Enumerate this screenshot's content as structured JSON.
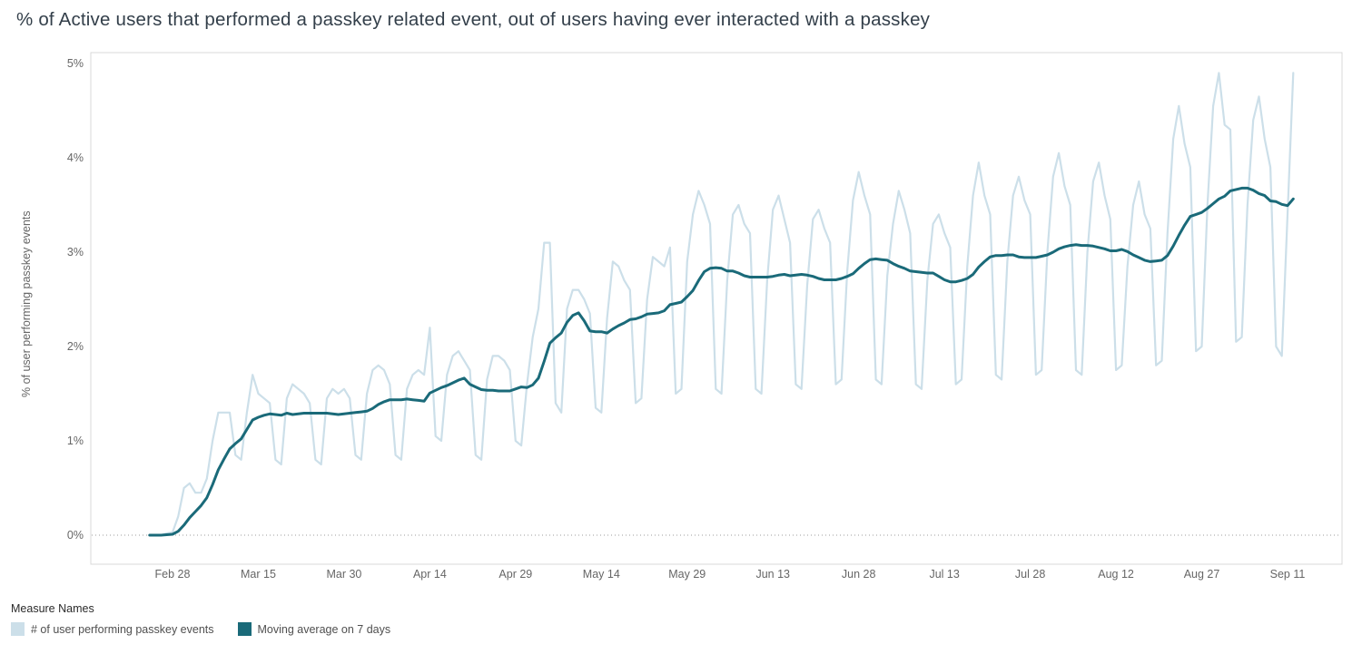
{
  "chart_data": {
    "type": "line",
    "title": "% of Active users that performed a passkey related event, out of users having ever interacted with a passkey",
    "xlabel": "",
    "ylabel": "% of user performing passkey events",
    "ylim": [
      0,
      5
    ],
    "grid": "dotted baseline at 0% only",
    "legend_title": "Measure Names",
    "legend_position": "bottom-left",
    "y_ticks": [
      {
        "label": "0%",
        "value": 0
      },
      {
        "label": "1%",
        "value": 1
      },
      {
        "label": "2%",
        "value": 2
      },
      {
        "label": "3%",
        "value": 3
      },
      {
        "label": "4%",
        "value": 4
      },
      {
        "label": "5%",
        "value": 5
      }
    ],
    "x_unit": "day offset from first data point (daily data)",
    "x_ticks": [
      {
        "label": "Feb 28",
        "day": 4
      },
      {
        "label": "Mar 15",
        "day": 19
      },
      {
        "label": "Mar 30",
        "day": 34
      },
      {
        "label": "Apr 14",
        "day": 49
      },
      {
        "label": "Apr 29",
        "day": 64
      },
      {
        "label": "May 14",
        "day": 79
      },
      {
        "label": "May 29",
        "day": 94
      },
      {
        "label": "Jun 13",
        "day": 109
      },
      {
        "label": "Jun 28",
        "day": 124
      },
      {
        "label": "Jul 13",
        "day": 139
      },
      {
        "label": "Jul 28",
        "day": 154
      },
      {
        "label": "Aug 12",
        "day": 169
      },
      {
        "label": "Aug 27",
        "day": 184
      },
      {
        "label": "Sep 11",
        "day": 199
      }
    ],
    "series": [
      {
        "name": "# of user performing passkey events",
        "color": "#ccdfe9",
        "values": [
          0,
          0,
          0,
          0.02,
          0.03,
          0.2,
          0.5,
          0.55,
          0.45,
          0.45,
          0.6,
          1.0,
          1.3,
          1.3,
          1.3,
          0.85,
          0.8,
          1.3,
          1.7,
          1.5,
          1.45,
          1.4,
          0.8,
          0.75,
          1.45,
          1.6,
          1.55,
          1.5,
          1.4,
          0.8,
          0.75,
          1.45,
          1.55,
          1.5,
          1.55,
          1.45,
          0.85,
          0.8,
          1.5,
          1.75,
          1.8,
          1.75,
          1.6,
          0.85,
          0.8,
          1.55,
          1.7,
          1.75,
          1.7,
          2.2,
          1.05,
          1.0,
          1.7,
          1.9,
          1.95,
          1.85,
          1.75,
          0.85,
          0.8,
          1.65,
          1.9,
          1.9,
          1.85,
          1.75,
          1.0,
          0.95,
          1.6,
          2.1,
          2.4,
          3.1,
          3.1,
          1.4,
          1.3,
          2.4,
          2.6,
          2.6,
          2.5,
          2.35,
          1.35,
          1.3,
          2.3,
          2.9,
          2.85,
          2.7,
          2.6,
          1.4,
          1.45,
          2.5,
          2.95,
          2.9,
          2.85,
          3.05,
          1.5,
          1.55,
          2.9,
          3.4,
          3.65,
          3.5,
          3.3,
          1.55,
          1.5,
          2.7,
          3.4,
          3.5,
          3.3,
          3.2,
          1.55,
          1.5,
          2.7,
          3.45,
          3.6,
          3.35,
          3.1,
          1.6,
          1.55,
          2.65,
          3.35,
          3.45,
          3.25,
          3.1,
          1.6,
          1.65,
          2.8,
          3.55,
          3.85,
          3.6,
          3.4,
          1.65,
          1.6,
          2.75,
          3.3,
          3.65,
          3.45,
          3.2,
          1.6,
          1.55,
          2.7,
          3.3,
          3.4,
          3.2,
          3.05,
          1.6,
          1.65,
          2.85,
          3.6,
          3.95,
          3.6,
          3.4,
          1.7,
          1.65,
          2.9,
          3.6,
          3.8,
          3.55,
          3.4,
          1.7,
          1.75,
          3.0,
          3.8,
          4.05,
          3.7,
          3.5,
          1.75,
          1.7,
          3.0,
          3.75,
          3.95,
          3.6,
          3.35,
          1.75,
          1.8,
          2.85,
          3.5,
          3.75,
          3.4,
          3.25,
          1.8,
          1.85,
          3.2,
          4.2,
          4.55,
          4.15,
          3.9,
          1.95,
          2.0,
          3.5,
          4.55,
          4.9,
          4.35,
          4.3,
          2.05,
          2.1,
          3.5,
          4.4,
          4.65,
          4.2,
          3.9,
          2.0,
          1.9,
          3.4,
          4.9
        ]
      },
      {
        "name": "Moving average on 7 days",
        "color": "#1a6a79",
        "derived_from": "7-day trailing moving average of series 0"
      }
    ]
  }
}
